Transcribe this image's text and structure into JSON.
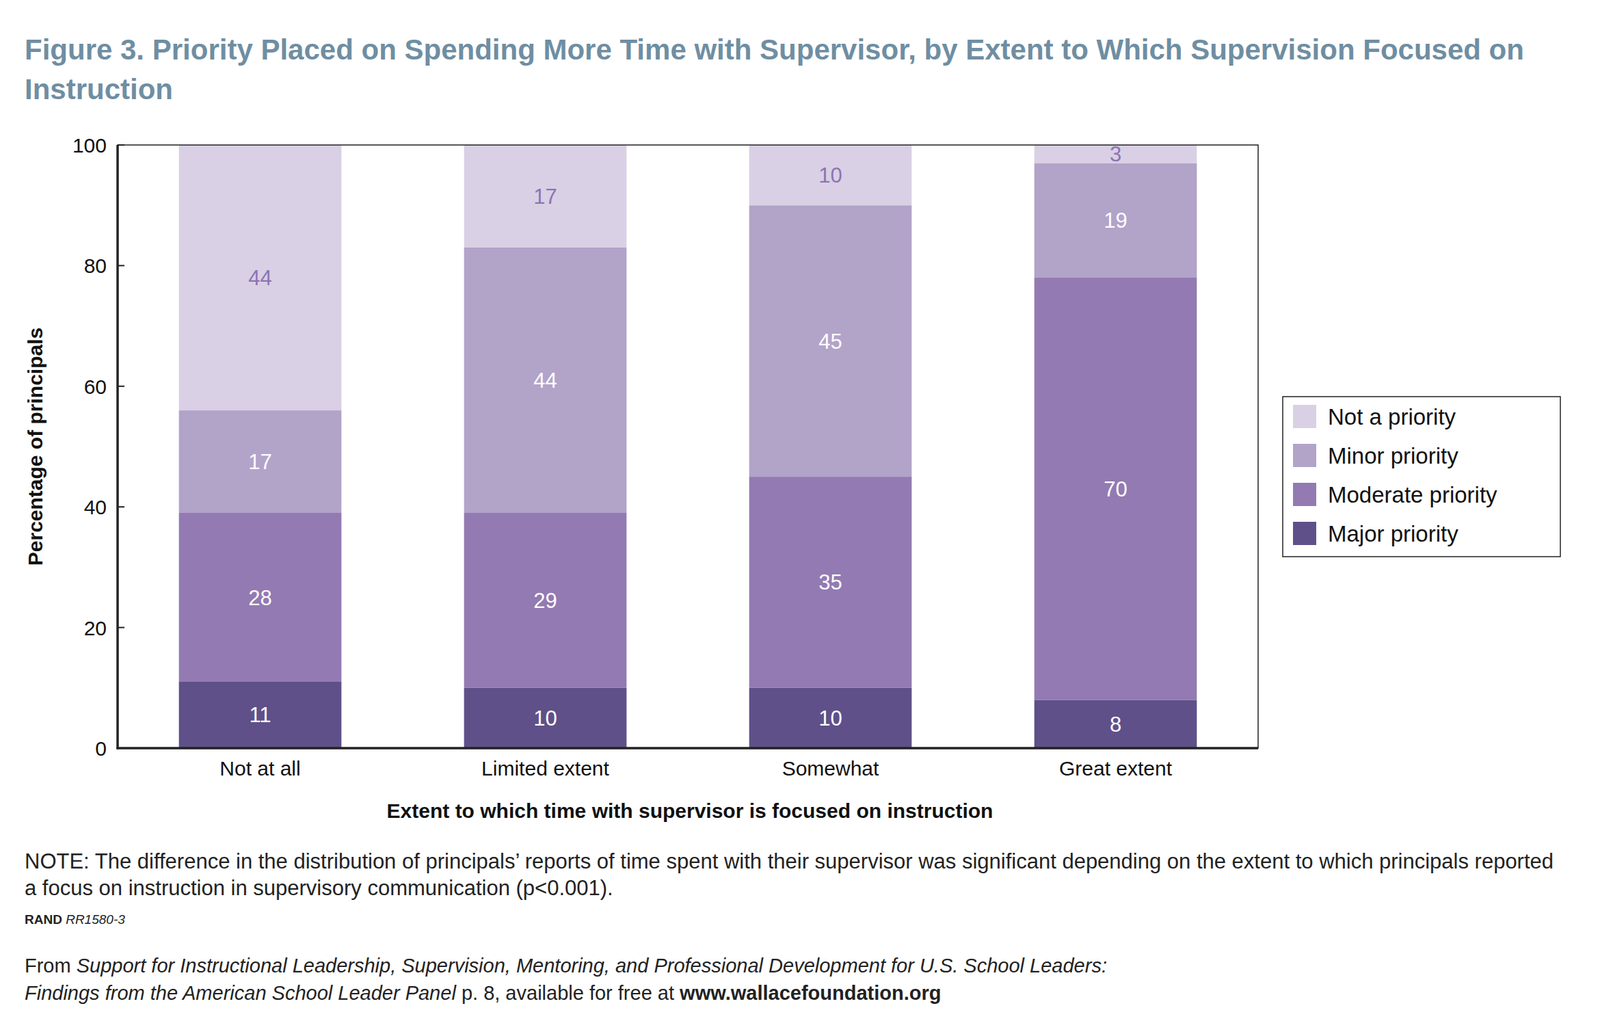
{
  "chart_data": {
    "type": "bar",
    "title": "Figure 3. Priority Placed on Spending More Time with Supervisor, by Extent to Which Supervision Focused on Instruction",
    "x_label": "Extent to which time with supervisor is focused on instruction",
    "y_label": "Percentage of principals",
    "categories": [
      "Not at all",
      "Limited extent",
      "Somewhat",
      "Great extent"
    ],
    "series": [
      {
        "name": "Major priority",
        "color": "#5f5089",
        "values": [
          11,
          10,
          10,
          8
        ]
      },
      {
        "name": "Moderate priority",
        "color": "#937ab2",
        "values": [
          28,
          29,
          35,
          70
        ]
      },
      {
        "name": "Minor priority",
        "color": "#b2a3c9",
        "values": [
          17,
          44,
          45,
          19
        ]
      },
      {
        "name": "Not a priority",
        "color": "#d9d0e5",
        "values": [
          44,
          17,
          10,
          3
        ]
      }
    ],
    "ylim": [
      0,
      100
    ],
    "yticks": [
      0,
      20,
      40,
      60,
      80,
      100
    ],
    "stacked": true,
    "data_labels": true,
    "grid": false,
    "legend": "right"
  },
  "note": "NOTE: The difference in the distribution of principals’ reports of time spent with their supervisor was significant depending on the extent to which principals reported a focus on instruction in supervisory communication (p<0.001).",
  "credit": {
    "org": "RAND",
    "id": "RR1580-3"
  },
  "footer": {
    "prefix": "From ",
    "title_lines": [
      "Support for Instructional Leadership, Supervision, Mentoring, and Professional Development for U.S. School Leaders:",
      "Findings from the American School Leader Panel"
    ],
    "suffix": " p. 8, available for free at ",
    "url": "www.wallacefoundation.org"
  }
}
